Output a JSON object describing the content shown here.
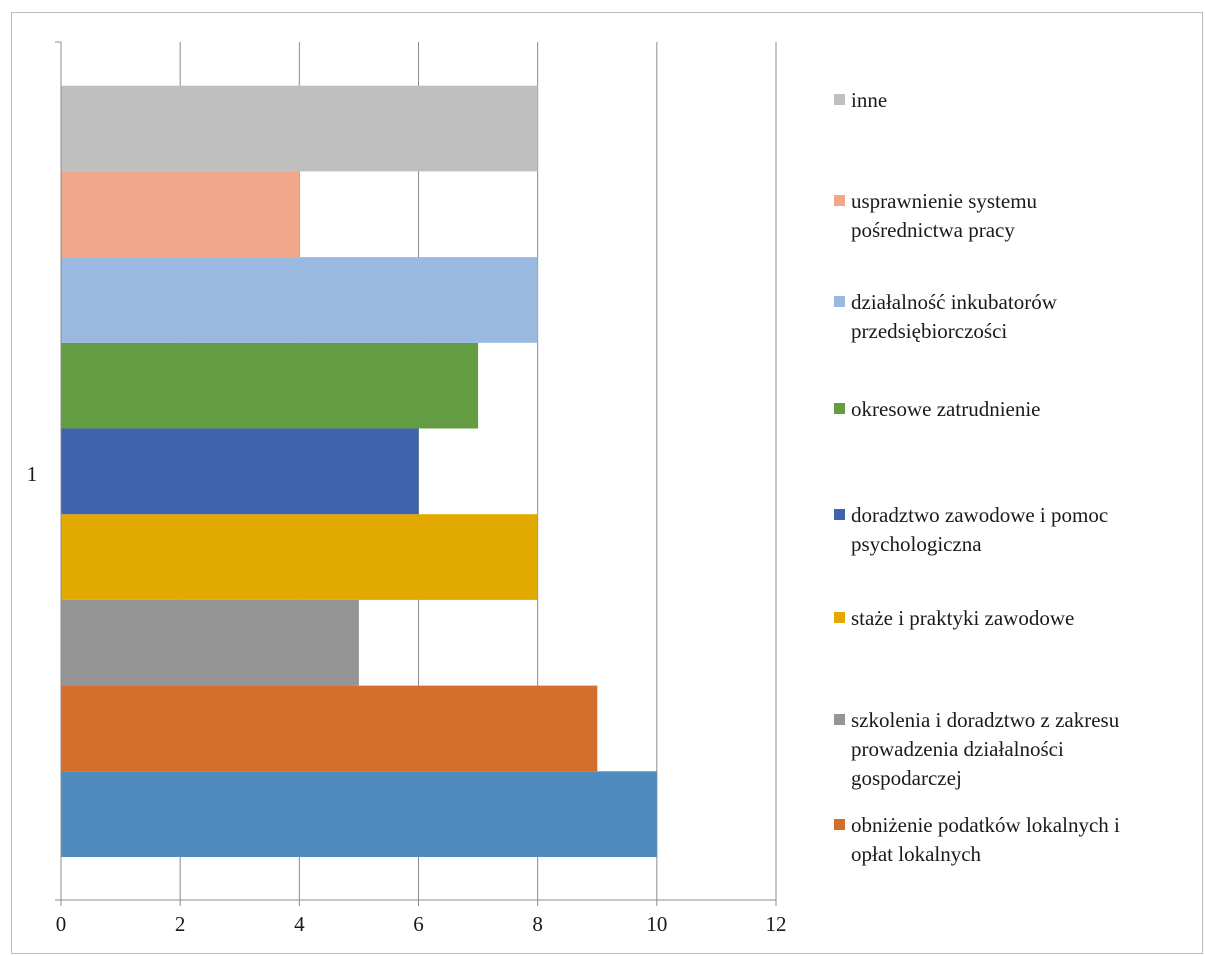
{
  "chart_data": {
    "type": "bar",
    "orientation": "horizontal",
    "categories": [
      "1"
    ],
    "xlim": [
      0,
      12
    ],
    "xticks": [
      0,
      2,
      4,
      6,
      8,
      10,
      12
    ],
    "grid": true,
    "legend_position": "right",
    "series": [
      {
        "name": "obniżenie podatków lokalnych i\nopłat lokalnych",
        "value": 9,
        "color": "#d46e2c"
      },
      {
        "name": "szkolenia i doradztwo z zakresu\nprowadzenia działalności\ngospodarczej",
        "value": 5,
        "color": "#959595"
      },
      {
        "name": "staże i praktyki zawodowe",
        "value": 8,
        "color": "#e2a900"
      },
      {
        "name": "doradztwo zawodowe i pomoc\npsychologiczna",
        "value": 6,
        "color": "#3d64ad"
      },
      {
        "name": "okresowe zatrudnienie",
        "value": 7,
        "color": "#639c42"
      },
      {
        "name": "działalność inkubatorów\nprzedsiębiorczości",
        "value": 8,
        "color": "#9ab9e0"
      },
      {
        "name": "usprawnienie systemu\npośrednictwa pracy",
        "value": 4,
        "color": "#f1a78a"
      },
      {
        "name": "inne",
        "value": 8,
        "color": "#bfbfbf"
      }
    ],
    "extra_bar": {
      "value": 10,
      "color": "#4f8bbd"
    }
  }
}
